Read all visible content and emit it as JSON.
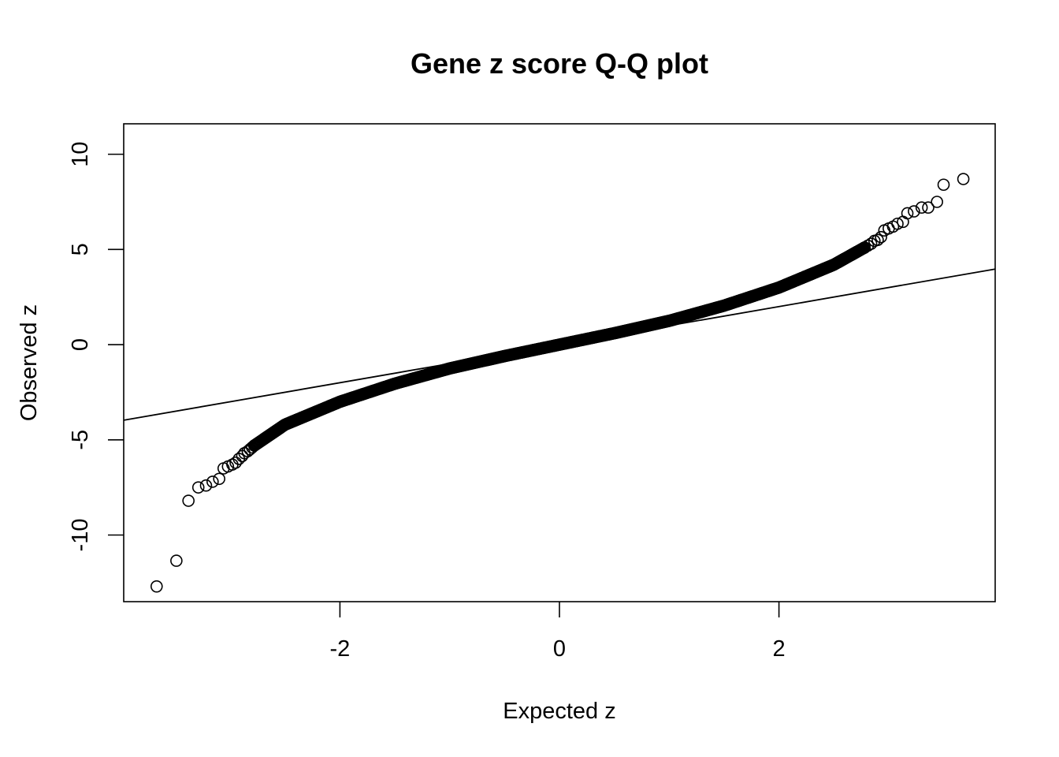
{
  "chart_data": {
    "type": "scatter",
    "title": "Gene z score Q-Q plot",
    "xlabel": "Expected z",
    "ylabel": "Observed z",
    "xlim": [
      -3.97,
      3.97
    ],
    "ylim": [
      -13.5,
      11.6
    ],
    "x_ticks": [
      -2,
      0,
      2
    ],
    "x_tick_labels": [
      "-2",
      "0",
      "2"
    ],
    "y_ticks": [
      -10,
      -5,
      0,
      5,
      10
    ],
    "y_tick_labels": [
      "-10",
      "-5",
      "0",
      "5",
      "10"
    ],
    "grid": false,
    "legend": "none",
    "reference_line": {
      "slope": 1,
      "intercept": 0
    },
    "series": [
      {
        "points": [
          [
            -3.67,
            -12.7
          ],
          [
            -3.49,
            -11.35
          ],
          [
            -3.38,
            -8.2
          ],
          [
            -3.29,
            -7.5
          ],
          [
            -3.22,
            -7.4
          ],
          [
            -3.16,
            -7.2
          ],
          [
            -3.1,
            -7.05
          ],
          [
            -3.06,
            -6.5
          ],
          [
            -3.02,
            -6.4
          ],
          [
            -2.98,
            -6.3
          ],
          [
            -2.95,
            -6.2
          ],
          [
            -2.92,
            -6.0
          ],
          [
            -2.89,
            -5.85
          ],
          [
            -2.87,
            -5.7
          ],
          [
            -2.84,
            -5.6
          ],
          [
            -2.82,
            -5.5
          ],
          [
            -2.8,
            -5.4
          ],
          [
            -2.78,
            -5.3
          ],
          [
            2.78,
            5.1
          ],
          [
            2.81,
            5.2
          ],
          [
            2.84,
            5.3
          ],
          [
            2.87,
            5.45
          ],
          [
            2.9,
            5.5
          ],
          [
            2.93,
            5.65
          ],
          [
            2.96,
            6.0
          ],
          [
            3.0,
            6.1
          ],
          [
            3.04,
            6.2
          ],
          [
            3.08,
            6.35
          ],
          [
            3.13,
            6.45
          ],
          [
            3.17,
            6.9
          ],
          [
            3.23,
            7.0
          ],
          [
            3.3,
            7.2
          ],
          [
            3.36,
            7.2
          ],
          [
            3.44,
            7.5
          ],
          [
            3.5,
            8.4
          ],
          [
            3.68,
            8.7
          ]
        ],
        "curve_knots": [
          [
            -2.78,
            -5.3
          ],
          [
            -2.5,
            -4.2
          ],
          [
            -2.0,
            -3.0
          ],
          [
            -1.5,
            -2.05
          ],
          [
            -1.0,
            -1.25
          ],
          [
            -0.5,
            -0.6
          ],
          [
            0.0,
            0.0
          ],
          [
            0.5,
            0.6
          ],
          [
            1.0,
            1.25
          ],
          [
            1.5,
            2.05
          ],
          [
            2.0,
            3.0
          ],
          [
            2.5,
            4.2
          ],
          [
            2.78,
            5.1
          ]
        ]
      }
    ]
  }
}
